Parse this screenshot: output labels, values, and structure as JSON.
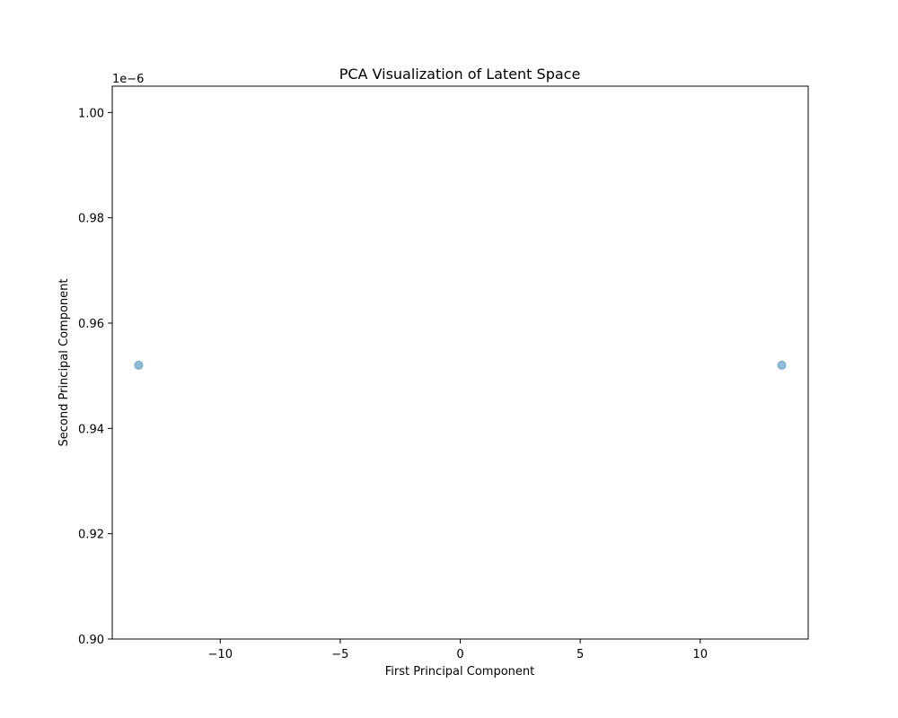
{
  "chart_data": {
    "type": "scatter",
    "title": "PCA Visualization of Latent Space",
    "xlabel": "First Principal Component",
    "ylabel": "Second Principal Component",
    "y_offset_text": "1e−6",
    "xlim": [
      -14.5,
      14.5
    ],
    "ylim": [
      0.9,
      1.005
    ],
    "xticks": [
      -10,
      -5,
      0,
      5,
      10
    ],
    "xtick_labels": [
      "−10",
      "−5",
      "0",
      "5",
      "10"
    ],
    "yticks": [
      0.9,
      0.92,
      0.94,
      0.96,
      0.98,
      1.0
    ],
    "ytick_labels": [
      "0.90",
      "0.92",
      "0.94",
      "0.96",
      "0.98",
      "1.00"
    ],
    "grid": false,
    "marker_color": "#1f77b4",
    "marker_alpha": 0.5,
    "points": [
      {
        "x": -13.4,
        "y": 0.952
      },
      {
        "x": 13.4,
        "y": 0.952
      }
    ]
  }
}
